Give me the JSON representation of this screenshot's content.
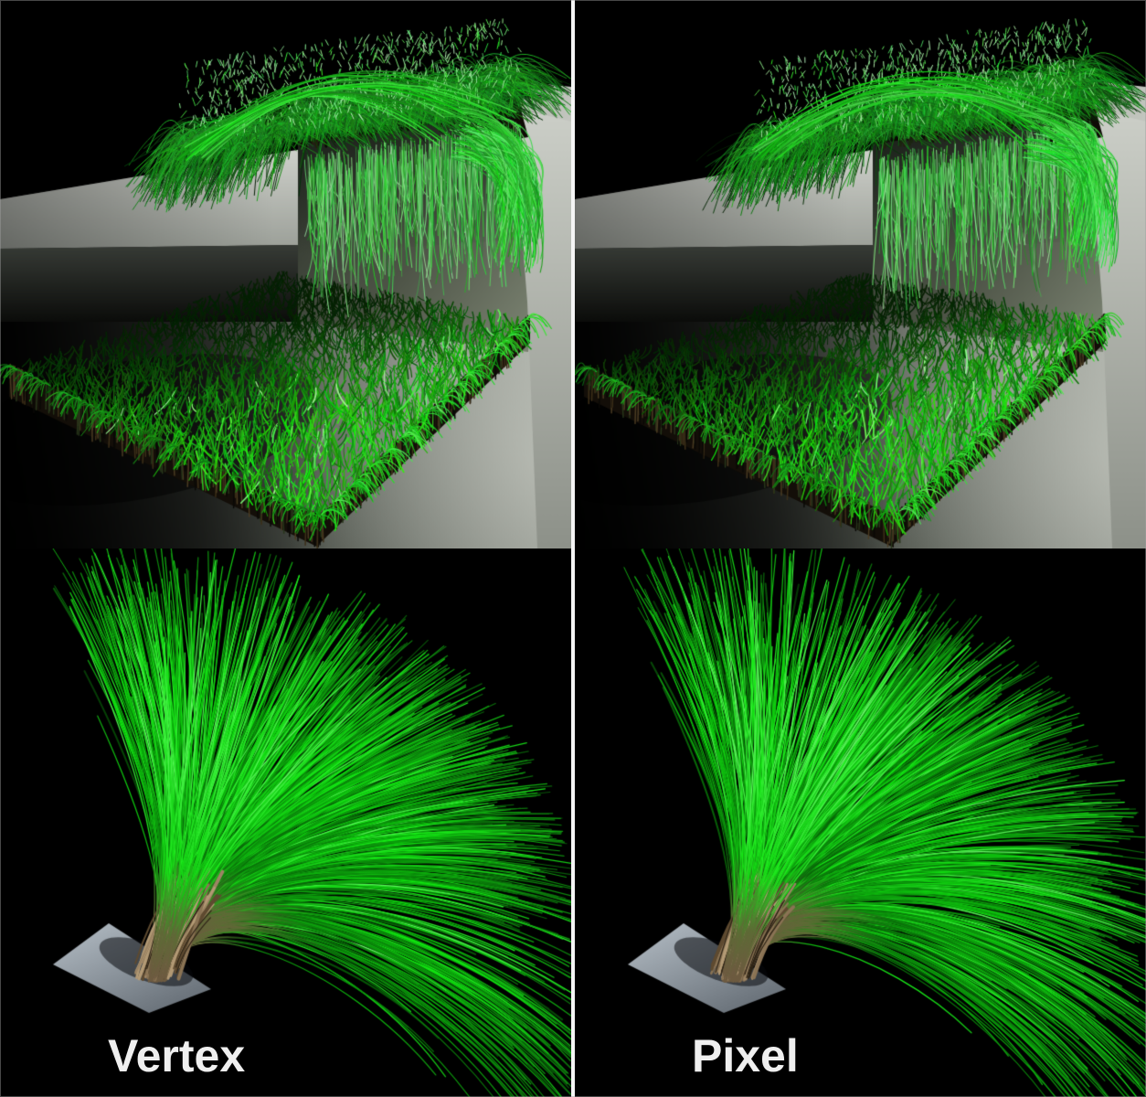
{
  "figure": {
    "type": "rendering-technique-comparison",
    "labels": {
      "left": "Vertex",
      "right": "Pixel"
    },
    "panels": [
      {
        "id": "top-left",
        "technique": "Vertex",
        "scene": "grass-ledge-overhang"
      },
      {
        "id": "top-right",
        "technique": "Pixel",
        "scene": "grass-ledge-overhang"
      },
      {
        "id": "bottom-left",
        "technique": "Vertex",
        "scene": "grass-fountain-sprout"
      },
      {
        "id": "bottom-right",
        "technique": "Pixel",
        "scene": "grass-fountain-sprout"
      }
    ]
  },
  "palette": {
    "background": "#000000",
    "divider": "#f5f5f5",
    "label_text": "#efefef",
    "ledge_light": "#d0d2cc",
    "ledge_mid": "#9a9e97",
    "ledge_under": "#363a35",
    "wall_dark": "#2e342c",
    "wall_mid": "#4d5346",
    "wall_light": "#78806f",
    "block_top": "#c3c6bf",
    "block_light": "#cdd0c9",
    "block_mid": "#8d9189",
    "floor_light": "#b0b4ac",
    "floor_mid": "#555a52",
    "floor_dark": "#060706",
    "soil_dark": "#130e08",
    "soil_streak": "#4a3b22",
    "stem_brown": "#8a7354",
    "stem_light": "#b39a75",
    "stem_dark": "#5e4a30",
    "olive_transition": "#5d6b35",
    "grass_bright": "#2fc12f",
    "grass_mid": "#1d8a1d",
    "grass_dark": "#0b2d0b",
    "grass_highlight": "#cdeec2",
    "plate_light": "#a9b2ba",
    "plate_dark": "#6d757d"
  }
}
